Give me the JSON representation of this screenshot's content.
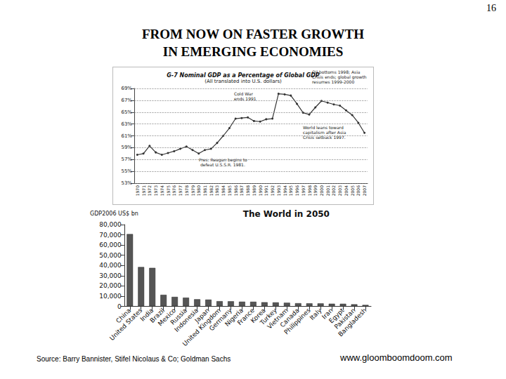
{
  "page": {
    "number": 16,
    "title_lines": [
      "FROM NOW ON FASTER GROWTH",
      "IN EMERGING ECONOMIES"
    ],
    "source": "Source: Barry Bannister, Stifel Nicolaus & Co; Goldman Sachs",
    "url": "www.gloomboomdoom.com"
  },
  "chart_data": [
    {
      "type": "line",
      "title": "G-7 Nominal GDP as a Percentage of Global GDP",
      "subtitle": "(All translated into U.S. dollars)",
      "categories": [
        "1970",
        "1971",
        "1972",
        "1973",
        "1974",
        "1975",
        "1976",
        "1977",
        "1978",
        "1979",
        "1980",
        "1981",
        "1982",
        "1983",
        "1984",
        "1985",
        "1986",
        "1987",
        "1988",
        "1989",
        "1990",
        "1991",
        "1992",
        "1993",
        "1994",
        "1995",
        "1996",
        "1997",
        "1998",
        "1999",
        "2000",
        "2001",
        "2002",
        "2003",
        "2004",
        "2005",
        "2006",
        "2007"
      ],
      "values": [
        57.8,
        58.0,
        59.3,
        58.2,
        57.8,
        58.1,
        58.4,
        58.8,
        59.2,
        58.6,
        58.0,
        58.6,
        58.8,
        59.8,
        61.0,
        62.3,
        63.9,
        64.0,
        64.1,
        63.5,
        63.4,
        63.8,
        63.9,
        68.1,
        68.0,
        67.8,
        66.4,
        64.9,
        64.6,
        65.8,
        66.9,
        66.6,
        66.3,
        66.1,
        65.3,
        64.5,
        63.2,
        61.5
      ],
      "color": "#333333",
      "marker": "circle",
      "ylim": [
        53,
        69
      ],
      "yticks": [
        {
          "value": 53,
          "label": "53%"
        },
        {
          "value": 55,
          "label": "55%"
        },
        {
          "value": 57,
          "label": "57%"
        },
        {
          "value": 59,
          "label": "59%"
        },
        {
          "value": 61,
          "label": "61%"
        },
        {
          "value": 63,
          "label": "63%"
        },
        {
          "value": 65,
          "label": "65%"
        },
        {
          "value": 67,
          "label": "67%"
        },
        {
          "value": 69,
          "label": "69%"
        }
      ],
      "grid": true,
      "annotations": [
        {
          "text": "Oil bottoms 1998; Asia Crisis ends; global growth resumes 1999-2000"
        },
        {
          "text": "Cold War ends 1991"
        },
        {
          "text": "World leans toward capitalism after Asia Crisis setback 1997."
        },
        {
          "text": "Pres. Reagan begins to defeat U.S.S.R. 1981."
        }
      ]
    },
    {
      "type": "bar",
      "title": "The World in 2050",
      "ylabel": "GDP2006 US$ bn",
      "categories": [
        "China",
        "United States",
        "India",
        "Brazil",
        "Mexico",
        "Russia",
        "Indonesia",
        "Japan",
        "United Kingdom",
        "Germany",
        "Nigeria",
        "France",
        "Korea",
        "Turkey",
        "Vietnam",
        "Canada",
        "Philippines",
        "Italy",
        "Iran",
        "Egypt",
        "Pakistan",
        "Bangladesh"
      ],
      "values": [
        70710,
        38514,
        37668,
        11366,
        9340,
        8580,
        7010,
        6677,
        5133,
        5024,
        4640,
        4592,
        4083,
        3943,
        3607,
        3149,
        3010,
        2950,
        2663,
        2602,
        2085,
        1466
      ],
      "color": "#555555",
      "ylim": [
        0,
        80000
      ],
      "yticks": [
        0,
        {
          "value": 10000,
          "label": "10,000"
        },
        {
          "value": 20000,
          "label": "20,000"
        },
        {
          "value": 30000,
          "label": "30,000"
        },
        {
          "value": 40000,
          "label": "40,000"
        },
        {
          "value": 50000,
          "label": "50,000"
        },
        {
          "value": 60000,
          "label": "60,000"
        },
        {
          "value": 70000,
          "label": "70,000"
        },
        {
          "value": 80000,
          "label": "80,000"
        }
      ],
      "grid": false
    }
  ]
}
